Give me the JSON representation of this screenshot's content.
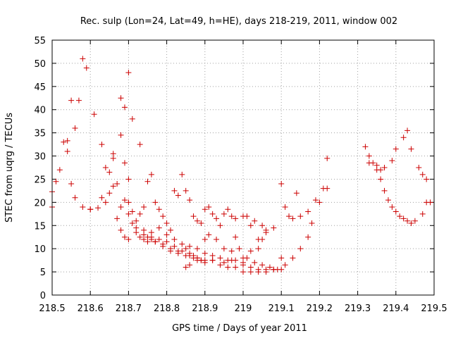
{
  "chart_data": {
    "type": "scatter",
    "title": "Rec. sulp (Lon=24, Lat=49, h=HE), days 218-219, 2011, window 002",
    "xlabel": "GPS time / Days of year 2011",
    "ylabel": "STEC from uqrg / TECUs",
    "xlim": [
      218.5,
      219.5
    ],
    "ylim": [
      0,
      55
    ],
    "xticks": [
      218.5,
      218.6,
      218.7,
      218.8,
      218.9,
      219.0,
      219.1,
      219.2,
      219.3,
      219.4,
      219.5
    ],
    "xtick_labels": [
      "218.5",
      "218.6",
      "218.7",
      "218.8",
      "218.9",
      "219",
      "219.1",
      "219.2",
      "219.3",
      "219.4",
      "219.5"
    ],
    "yticks": [
      0,
      5,
      10,
      15,
      20,
      25,
      30,
      35,
      40,
      45,
      50,
      55
    ],
    "ytick_labels": [
      "0",
      "5",
      "10",
      "15",
      "20",
      "25",
      "30",
      "35",
      "40",
      "45",
      "50",
      "55"
    ],
    "grid": true,
    "marker": "+",
    "color": "#cc0000",
    "points": [
      [
        218.5,
        22.3
      ],
      [
        218.52,
        27.0
      ],
      [
        218.54,
        31.0
      ],
      [
        218.56,
        36.0
      ],
      [
        218.58,
        51.0
      ],
      [
        218.59,
        49.0
      ],
      [
        218.61,
        39.0
      ],
      [
        218.63,
        32.5
      ],
      [
        218.68,
        42.5
      ],
      [
        218.69,
        40.5
      ],
      [
        218.7,
        48.0
      ],
      [
        218.71,
        38.0
      ],
      [
        218.73,
        32.5
      ],
      [
        218.5,
        19.0
      ],
      [
        218.51,
        24.5
      ],
      [
        218.53,
        33.0
      ],
      [
        218.54,
        33.3
      ],
      [
        218.55,
        42.0
      ],
      [
        218.57,
        42.0
      ],
      [
        218.6,
        18.5
      ],
      [
        218.63,
        21.0
      ],
      [
        218.66,
        30.5
      ],
      [
        218.68,
        34.5
      ],
      [
        218.69,
        28.5
      ],
      [
        218.7,
        25.0
      ],
      [
        218.55,
        24.0
      ],
      [
        218.56,
        21.0
      ],
      [
        218.58,
        19.0
      ],
      [
        218.6,
        18.5
      ],
      [
        218.62,
        18.8
      ],
      [
        218.64,
        20.0
      ],
      [
        218.65,
        22.0
      ],
      [
        218.66,
        23.5
      ],
      [
        218.68,
        19.0
      ],
      [
        218.7,
        17.5
      ],
      [
        218.72,
        14.5
      ],
      [
        218.74,
        13.0
      ],
      [
        218.76,
        12.5
      ],
      [
        218.78,
        12.0
      ],
      [
        218.8,
        11.5
      ],
      [
        218.82,
        10.5
      ],
      [
        218.84,
        9.5
      ],
      [
        218.86,
        8.5
      ],
      [
        218.88,
        8.0
      ],
      [
        218.9,
        7.5
      ],
      [
        218.64,
        27.5
      ],
      [
        218.65,
        26.5
      ],
      [
        218.66,
        29.5
      ],
      [
        218.67,
        24.0
      ],
      [
        218.69,
        20.5
      ],
      [
        218.7,
        20.0
      ],
      [
        218.71,
        18.0
      ],
      [
        218.72,
        16.0
      ],
      [
        218.74,
        14.0
      ],
      [
        218.75,
        12.5
      ],
      [
        218.77,
        11.5
      ],
      [
        218.79,
        10.5
      ],
      [
        218.81,
        9.5
      ],
      [
        218.83,
        9.0
      ],
      [
        218.85,
        8.5
      ],
      [
        218.87,
        8.0
      ],
      [
        218.89,
        7.5
      ],
      [
        218.92,
        7.5
      ],
      [
        218.95,
        7.0
      ],
      [
        218.97,
        7.5
      ],
      [
        219.0,
        5.0
      ],
      [
        219.02,
        5.0
      ],
      [
        219.04,
        5.5
      ],
      [
        219.06,
        5.5
      ],
      [
        219.08,
        5.5
      ],
      [
        219.1,
        8.0
      ],
      [
        218.67,
        16.5
      ],
      [
        218.68,
        14.0
      ],
      [
        218.69,
        12.5
      ],
      [
        218.7,
        12.0
      ],
      [
        218.71,
        15.5
      ],
      [
        218.72,
        13.5
      ],
      [
        218.73,
        12.5
      ],
      [
        218.74,
        12.0
      ],
      [
        218.75,
        11.5
      ],
      [
        218.76,
        13.5
      ],
      [
        218.78,
        14.5
      ],
      [
        218.8,
        13.0
      ],
      [
        218.82,
        12.0
      ],
      [
        218.84,
        11.0
      ],
      [
        218.86,
        10.5
      ],
      [
        218.88,
        10.0
      ],
      [
        218.9,
        9.0
      ],
      [
        218.92,
        8.5
      ],
      [
        218.94,
        8.0
      ],
      [
        218.96,
        7.5
      ],
      [
        218.98,
        7.5
      ],
      [
        219.0,
        7.0
      ],
      [
        219.01,
        8.0
      ],
      [
        219.03,
        7.0
      ],
      [
        219.05,
        6.5
      ],
      [
        219.07,
        6.0
      ],
      [
        219.09,
        5.5
      ],
      [
        219.11,
        6.5
      ],
      [
        219.13,
        8.0
      ],
      [
        219.15,
        10.0
      ],
      [
        219.17,
        12.5
      ],
      [
        219.18,
        15.5
      ],
      [
        219.2,
        20.0
      ],
      [
        219.22,
        23.0
      ],
      [
        219.22,
        29.5
      ],
      [
        218.73,
        17.5
      ],
      [
        218.74,
        19.0
      ],
      [
        218.75,
        24.5
      ],
      [
        218.76,
        26.0
      ],
      [
        218.77,
        20.0
      ],
      [
        218.78,
        18.5
      ],
      [
        218.79,
        17.0
      ],
      [
        218.8,
        15.5
      ],
      [
        218.81,
        14.0
      ],
      [
        218.82,
        22.5
      ],
      [
        218.83,
        21.5
      ],
      [
        218.84,
        26.0
      ],
      [
        218.85,
        22.5
      ],
      [
        218.86,
        20.5
      ],
      [
        218.87,
        17.0
      ],
      [
        218.88,
        16.0
      ],
      [
        218.89,
        15.5
      ],
      [
        218.9,
        18.5
      ],
      [
        218.91,
        19.0
      ],
      [
        218.92,
        17.5
      ],
      [
        218.93,
        16.5
      ],
      [
        218.94,
        15.0
      ],
      [
        218.95,
        17.5
      ],
      [
        218.96,
        18.5
      ],
      [
        218.97,
        17.0
      ],
      [
        218.98,
        16.5
      ],
      [
        219.0,
        17.0
      ],
      [
        219.01,
        17.0
      ],
      [
        219.02,
        15.0
      ],
      [
        219.03,
        16.0
      ],
      [
        219.04,
        12.0
      ],
      [
        219.05,
        15.0
      ],
      [
        219.06,
        14.0
      ],
      [
        218.76,
        12.0
      ],
      [
        218.77,
        11.5
      ],
      [
        218.79,
        11.0
      ],
      [
        218.81,
        10.0
      ],
      [
        218.83,
        9.5
      ],
      [
        218.85,
        10.0
      ],
      [
        218.86,
        9.0
      ],
      [
        218.87,
        8.5
      ],
      [
        218.88,
        8.0
      ],
      [
        218.89,
        7.5
      ],
      [
        218.9,
        12.0
      ],
      [
        218.91,
        13.0
      ],
      [
        218.93,
        12.0
      ],
      [
        218.95,
        10.0
      ],
      [
        218.97,
        9.5
      ],
      [
        218.98,
        12.5
      ],
      [
        218.99,
        10.0
      ],
      [
        219.0,
        8.0
      ],
      [
        219.02,
        9.5
      ],
      [
        219.04,
        10.0
      ],
      [
        219.05,
        12.0
      ],
      [
        219.06,
        13.5
      ],
      [
        218.85,
        6.0
      ],
      [
        218.86,
        6.5
      ],
      [
        218.88,
        7.5
      ],
      [
        218.9,
        7.0
      ],
      [
        218.92,
        7.5
      ],
      [
        218.94,
        6.5
      ],
      [
        218.96,
        6.0
      ],
      [
        218.98,
        6.0
      ],
      [
        219.0,
        6.5
      ],
      [
        219.02,
        6.0
      ],
      [
        219.04,
        5.0
      ],
      [
        219.06,
        5.0
      ],
      [
        219.08,
        5.5
      ],
      [
        219.1,
        5.5
      ],
      [
        219.08,
        14.5
      ],
      [
        219.1,
        24.0
      ],
      [
        219.11,
        19.0
      ],
      [
        219.12,
        17.0
      ],
      [
        219.13,
        16.5
      ],
      [
        219.14,
        22.0
      ],
      [
        219.15,
        17.0
      ],
      [
        219.17,
        18.0
      ],
      [
        219.19,
        20.5
      ],
      [
        219.21,
        23.0
      ],
      [
        219.32,
        32.0
      ],
      [
        219.33,
        30.0
      ],
      [
        219.34,
        28.5
      ],
      [
        219.35,
        28.0
      ],
      [
        219.36,
        25.0
      ],
      [
        219.37,
        22.5
      ],
      [
        219.38,
        20.5
      ],
      [
        219.39,
        19.0
      ],
      [
        219.4,
        18.0
      ],
      [
        219.41,
        17.0
      ],
      [
        219.42,
        16.5
      ],
      [
        219.43,
        16.0
      ],
      [
        219.44,
        15.5
      ],
      [
        219.45,
        16.0
      ],
      [
        219.47,
        17.5
      ],
      [
        219.48,
        20.0
      ],
      [
        219.33,
        28.5
      ],
      [
        219.35,
        27.0
      ],
      [
        219.36,
        27.0
      ],
      [
        219.37,
        27.5
      ],
      [
        219.39,
        29.0
      ],
      [
        219.4,
        31.5
      ],
      [
        219.42,
        34.0
      ],
      [
        219.43,
        35.5
      ],
      [
        219.44,
        31.5
      ],
      [
        219.46,
        27.5
      ],
      [
        219.47,
        26.0
      ],
      [
        219.48,
        25.0
      ],
      [
        219.49,
        20.0
      ]
    ]
  }
}
